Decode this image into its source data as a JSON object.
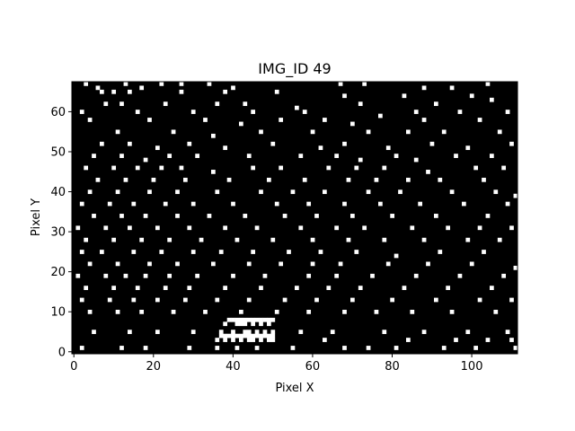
{
  "chart_data": {
    "type": "heatmap",
    "title": "IMG_ID 49",
    "xlabel": "Pixel X",
    "ylabel": "Pixel Y",
    "xlim": [
      0,
      112
    ],
    "ylim": [
      0,
      68
    ],
    "x_ticks": [
      0,
      20,
      40,
      60,
      80,
      100
    ],
    "y_ticks": [
      0,
      10,
      20,
      30,
      40,
      50,
      60
    ],
    "grid": false,
    "colormap": "binary: 0 = black, 1 = white",
    "colors": {
      "background": "#000000",
      "pixel_on": "#ffffff"
    },
    "white_pixels": [
      [
        3,
        67
      ],
      [
        6,
        66
      ],
      [
        13,
        67
      ],
      [
        17,
        66
      ],
      [
        22,
        67
      ],
      [
        27,
        67
      ],
      [
        34,
        67
      ],
      [
        40,
        66
      ],
      [
        67,
        67
      ],
      [
        73,
        67
      ],
      [
        88,
        66
      ],
      [
        95,
        66
      ],
      [
        104,
        67
      ],
      [
        7,
        65
      ],
      [
        10,
        65
      ],
      [
        14,
        65
      ],
      [
        27,
        65
      ],
      [
        38,
        65
      ],
      [
        51,
        65
      ],
      [
        68,
        64
      ],
      [
        83,
        64
      ],
      [
        100,
        64
      ],
      [
        8,
        62
      ],
      [
        12,
        62
      ],
      [
        23,
        62
      ],
      [
        36,
        62
      ],
      [
        43,
        62
      ],
      [
        56,
        61
      ],
      [
        72,
        62
      ],
      [
        91,
        62
      ],
      [
        105,
        63
      ],
      [
        2,
        60
      ],
      [
        16,
        60
      ],
      [
        30,
        60
      ],
      [
        45,
        60
      ],
      [
        58,
        60
      ],
      [
        77,
        59
      ],
      [
        86,
        60
      ],
      [
        97,
        60
      ],
      [
        109,
        60
      ],
      [
        4,
        58
      ],
      [
        19,
        58
      ],
      [
        33,
        58
      ],
      [
        42,
        57
      ],
      [
        52,
        58
      ],
      [
        63,
        58
      ],
      [
        70,
        57
      ],
      [
        88,
        58
      ],
      [
        102,
        58
      ],
      [
        11,
        55
      ],
      [
        25,
        55
      ],
      [
        35,
        54
      ],
      [
        47,
        55
      ],
      [
        60,
        55
      ],
      [
        74,
        55
      ],
      [
        84,
        55
      ],
      [
        93,
        55
      ],
      [
        107,
        55
      ],
      [
        7,
        52
      ],
      [
        14,
        52
      ],
      [
        21,
        51
      ],
      [
        29,
        52
      ],
      [
        38,
        51
      ],
      [
        50,
        52
      ],
      [
        62,
        51
      ],
      [
        68,
        52
      ],
      [
        79,
        51
      ],
      [
        90,
        52
      ],
      [
        99,
        51
      ],
      [
        110,
        52
      ],
      [
        5,
        49
      ],
      [
        12,
        49
      ],
      [
        18,
        48
      ],
      [
        24,
        49
      ],
      [
        31,
        49
      ],
      [
        44,
        49
      ],
      [
        57,
        49
      ],
      [
        66,
        49
      ],
      [
        72,
        48
      ],
      [
        81,
        49
      ],
      [
        86,
        48
      ],
      [
        96,
        49
      ],
      [
        105,
        49
      ],
      [
        3,
        46
      ],
      [
        10,
        46
      ],
      [
        16,
        46
      ],
      [
        22,
        46
      ],
      [
        27,
        46
      ],
      [
        35,
        45
      ],
      [
        45,
        46
      ],
      [
        52,
        46
      ],
      [
        64,
        46
      ],
      [
        71,
        46
      ],
      [
        78,
        46
      ],
      [
        89,
        45
      ],
      [
        101,
        46
      ],
      [
        108,
        46
      ],
      [
        6,
        43
      ],
      [
        13,
        43
      ],
      [
        20,
        43
      ],
      [
        28,
        43
      ],
      [
        39,
        43
      ],
      [
        49,
        43
      ],
      [
        58,
        43
      ],
      [
        69,
        43
      ],
      [
        76,
        43
      ],
      [
        84,
        43
      ],
      [
        92,
        43
      ],
      [
        103,
        43
      ],
      [
        4,
        40
      ],
      [
        11,
        40
      ],
      [
        19,
        40
      ],
      [
        26,
        40
      ],
      [
        36,
        40
      ],
      [
        47,
        40
      ],
      [
        55,
        40
      ],
      [
        63,
        40
      ],
      [
        74,
        40
      ],
      [
        82,
        40
      ],
      [
        95,
        40
      ],
      [
        106,
        40
      ],
      [
        111,
        39
      ],
      [
        2,
        37
      ],
      [
        9,
        37
      ],
      [
        15,
        37
      ],
      [
        23,
        37
      ],
      [
        30,
        37
      ],
      [
        40,
        37
      ],
      [
        51,
        37
      ],
      [
        59,
        37
      ],
      [
        68,
        37
      ],
      [
        77,
        37
      ],
      [
        87,
        37
      ],
      [
        98,
        37
      ],
      [
        109,
        37
      ],
      [
        5,
        34
      ],
      [
        12,
        34
      ],
      [
        18,
        34
      ],
      [
        26,
        34
      ],
      [
        34,
        34
      ],
      [
        43,
        34
      ],
      [
        53,
        34
      ],
      [
        61,
        34
      ],
      [
        70,
        34
      ],
      [
        80,
        34
      ],
      [
        91,
        34
      ],
      [
        104,
        34
      ],
      [
        1,
        31
      ],
      [
        8,
        31
      ],
      [
        14,
        31
      ],
      [
        21,
        31
      ],
      [
        29,
        31
      ],
      [
        38,
        31
      ],
      [
        46,
        31
      ],
      [
        57,
        31
      ],
      [
        66,
        31
      ],
      [
        73,
        31
      ],
      [
        85,
        31
      ],
      [
        94,
        31
      ],
      [
        102,
        31
      ],
      [
        110,
        31
      ],
      [
        3,
        28
      ],
      [
        10,
        28
      ],
      [
        17,
        28
      ],
      [
        24,
        28
      ],
      [
        32,
        28
      ],
      [
        41,
        28
      ],
      [
        50,
        28
      ],
      [
        60,
        28
      ],
      [
        69,
        28
      ],
      [
        78,
        28
      ],
      [
        88,
        28
      ],
      [
        99,
        28
      ],
      [
        107,
        28
      ],
      [
        2,
        25
      ],
      [
        7,
        25
      ],
      [
        15,
        25
      ],
      [
        22,
        25
      ],
      [
        30,
        25
      ],
      [
        37,
        25
      ],
      [
        45,
        25
      ],
      [
        54,
        25
      ],
      [
        62,
        25
      ],
      [
        71,
        25
      ],
      [
        81,
        24
      ],
      [
        92,
        25
      ],
      [
        103,
        25
      ],
      [
        4,
        22
      ],
      [
        11,
        22
      ],
      [
        19,
        22
      ],
      [
        26,
        22
      ],
      [
        35,
        22
      ],
      [
        44,
        22
      ],
      [
        52,
        22
      ],
      [
        60,
        22
      ],
      [
        67,
        22
      ],
      [
        79,
        22
      ],
      [
        89,
        22
      ],
      [
        100,
        22
      ],
      [
        111,
        21
      ],
      [
        1,
        19
      ],
      [
        8,
        19
      ],
      [
        13,
        19
      ],
      [
        18,
        19
      ],
      [
        24,
        19
      ],
      [
        31,
        19
      ],
      [
        40,
        19
      ],
      [
        48,
        19
      ],
      [
        59,
        19
      ],
      [
        66,
        19
      ],
      [
        75,
        19
      ],
      [
        86,
        19
      ],
      [
        97,
        19
      ],
      [
        108,
        19
      ],
      [
        3,
        16
      ],
      [
        10,
        16
      ],
      [
        16,
        16
      ],
      [
        23,
        16
      ],
      [
        29,
        16
      ],
      [
        38,
        16
      ],
      [
        47,
        16
      ],
      [
        56,
        16
      ],
      [
        64,
        16
      ],
      [
        72,
        16
      ],
      [
        83,
        16
      ],
      [
        94,
        16
      ],
      [
        105,
        16
      ],
      [
        2,
        13
      ],
      [
        9,
        13
      ],
      [
        15,
        13
      ],
      [
        21,
        13
      ],
      [
        28,
        13
      ],
      [
        36,
        13
      ],
      [
        44,
        13
      ],
      [
        53,
        13
      ],
      [
        61,
        13
      ],
      [
        70,
        13
      ],
      [
        80,
        13
      ],
      [
        91,
        13
      ],
      [
        102,
        13
      ],
      [
        110,
        13
      ],
      [
        4,
        10
      ],
      [
        11,
        10
      ],
      [
        17,
        10
      ],
      [
        25,
        10
      ],
      [
        33,
        10
      ],
      [
        42,
        10
      ],
      [
        51,
        10
      ],
      [
        59,
        10
      ],
      [
        68,
        10
      ],
      [
        76,
        10
      ],
      [
        85,
        10
      ],
      [
        95,
        10
      ],
      [
        106,
        10
      ],
      [
        39,
        8
      ],
      [
        40,
        8
      ],
      [
        41,
        8
      ],
      [
        42,
        8
      ],
      [
        43,
        8
      ],
      [
        44,
        8
      ],
      [
        45,
        8
      ],
      [
        46,
        8
      ],
      [
        47,
        8
      ],
      [
        48,
        8
      ],
      [
        49,
        8
      ],
      [
        50,
        8
      ],
      [
        38,
        7
      ],
      [
        41,
        7
      ],
      [
        42,
        7
      ],
      [
        43,
        7
      ],
      [
        45,
        7
      ],
      [
        47,
        7
      ],
      [
        49,
        7
      ],
      [
        5,
        5
      ],
      [
        14,
        5
      ],
      [
        21,
        5
      ],
      [
        30,
        5
      ],
      [
        37,
        5
      ],
      [
        40,
        5
      ],
      [
        43,
        5
      ],
      [
        44,
        5
      ],
      [
        46,
        5
      ],
      [
        48,
        5
      ],
      [
        50,
        5
      ],
      [
        57,
        5
      ],
      [
        65,
        5
      ],
      [
        78,
        5
      ],
      [
        88,
        5
      ],
      [
        99,
        5
      ],
      [
        109,
        5
      ],
      [
        37,
        4
      ],
      [
        38,
        4
      ],
      [
        39,
        4
      ],
      [
        40,
        4
      ],
      [
        41,
        4
      ],
      [
        42,
        4
      ],
      [
        43,
        4
      ],
      [
        44,
        4
      ],
      [
        45,
        4
      ],
      [
        46,
        4
      ],
      [
        47,
        4
      ],
      [
        48,
        4
      ],
      [
        49,
        4
      ],
      [
        50,
        4
      ],
      [
        36,
        3
      ],
      [
        38,
        3
      ],
      [
        40,
        3
      ],
      [
        42,
        3
      ],
      [
        44,
        3
      ],
      [
        45,
        3
      ],
      [
        47,
        3
      ],
      [
        49,
        3
      ],
      [
        50,
        3
      ],
      [
        63,
        3
      ],
      [
        84,
        3
      ],
      [
        96,
        3
      ],
      [
        104,
        3
      ],
      [
        110,
        3
      ],
      [
        2,
        1
      ],
      [
        12,
        1
      ],
      [
        18,
        1
      ],
      [
        29,
        1
      ],
      [
        36,
        1
      ],
      [
        41,
        1
      ],
      [
        46,
        1
      ],
      [
        55,
        1
      ],
      [
        68,
        1
      ],
      [
        74,
        1
      ],
      [
        81,
        1
      ],
      [
        93,
        1
      ],
      [
        101,
        1
      ],
      [
        111,
        1
      ]
    ]
  }
}
